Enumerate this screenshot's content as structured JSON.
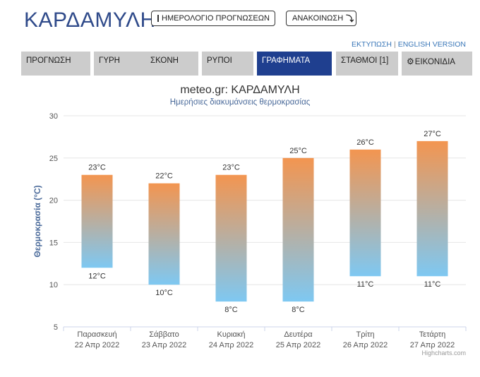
{
  "header": {
    "title": "ΚΑΡΔΑΜΥΛΗ",
    "calendar_button": "ΗΜΕΡΟΛΟΓΙΟ ΠΡΟΓΝΩΣΕΩΝ",
    "announce_button": "ΑΝΑΚΟΙΝΩΣΗ",
    "print_link": "ΕΚΤΥΠΩΣΗ",
    "separator": "|",
    "english_link": "ENGLISH VERSION"
  },
  "nav": {
    "items": [
      {
        "label": "ΠΡΟΓΝΩΣΗ"
      },
      {
        "label": "ΓΥΡΗ"
      },
      {
        "label": "ΣΚΟΝΗ"
      },
      {
        "label": "ΡΥΠΟΙ"
      },
      {
        "label": "ΓΡΑΦΗΜΑΤΑ"
      },
      {
        "label": "ΣΤΑΘΜΟΙ [1]"
      },
      {
        "label": "ΕΙΚΟΝΙΔΙΑ"
      }
    ],
    "active": "ΓΡΑΦΗΜΑΤΑ"
  },
  "chart_data": {
    "type": "columnrange",
    "title": "meteo.gr: ΚΑΡΔΑΜΥΛΗ",
    "subtitle": "Ημερήσιες διακυμάνσεις θερμοκρασίας",
    "ylabel": "Θερμοκρασία (°C)",
    "ylim": [
      5,
      30
    ],
    "yticks": [
      5,
      10,
      15,
      20,
      25,
      30
    ],
    "grid": true,
    "unit": "°C",
    "categories": [
      {
        "day": "Παρασκευή",
        "date": "22 Απρ 2022"
      },
      {
        "day": "Σάββατο",
        "date": "23 Απρ 2022"
      },
      {
        "day": "Κυριακή",
        "date": "24 Απρ 2022"
      },
      {
        "day": "Δευτέρα",
        "date": "25 Απρ 2022"
      },
      {
        "day": "Τρίτη",
        "date": "26 Απρ 2022"
      },
      {
        "day": "Τετάρτη",
        "date": "27 Απρ 2022"
      }
    ],
    "max": [
      23,
      22,
      23,
      25,
      26,
      27
    ],
    "min": [
      12,
      10,
      8,
      8,
      11,
      11
    ],
    "colors": {
      "high": "#f39550",
      "low": "#7ec8f2",
      "grid": "#e6e6e6",
      "axis": "#ccd6eb",
      "label": "#333333",
      "ylabel": "#4a6a9a"
    }
  },
  "credit": "Highcharts.com"
}
